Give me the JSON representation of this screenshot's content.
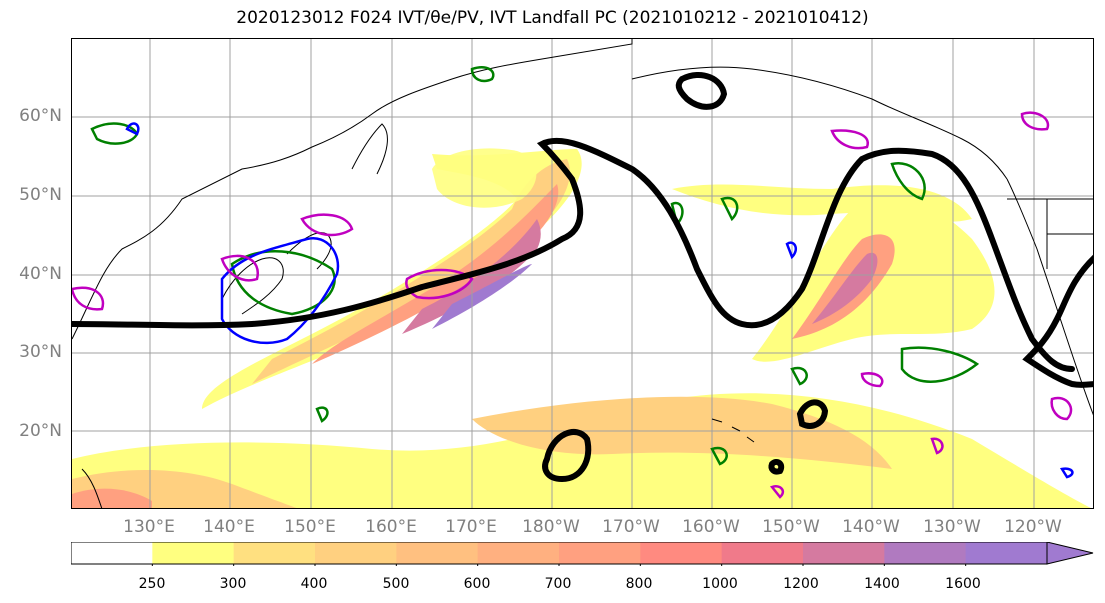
{
  "title": "2020123012 F024 IVT/θe/PV, IVT Landfall PC (2021010212 - 2021010412)",
  "latitude_labels": [
    "60°N",
    "50°N",
    "40°N",
    "30°N",
    "20°N"
  ],
  "longitude_labels": [
    "130°E",
    "140°E",
    "150°E",
    "160°E",
    "170°E",
    "180°W",
    "170°W",
    "160°W",
    "150°W",
    "140°W",
    "130°W",
    "120°W"
  ],
  "colorbar": {
    "tick_labels": [
      "250",
      "300",
      "400",
      "500",
      "600",
      "700",
      "800",
      "1000",
      "1200",
      "1400",
      "1600"
    ],
    "colors": [
      "#ffffff",
      "#ffff80",
      "#ffe080",
      "#ffd080",
      "#ffc080",
      "#ffb080",
      "#ffa080",
      "#ff8a80",
      "#f07a8a",
      "#d57aa0",
      "#b07ac0",
      "#a07ad0"
    ]
  },
  "contour_colors": {
    "pv_dynamic_tropopause": "#000000",
    "theta_e_high": "#008000",
    "theta_e_low": "#0000ff",
    "theta_e_mid": "#c000c0"
  }
}
